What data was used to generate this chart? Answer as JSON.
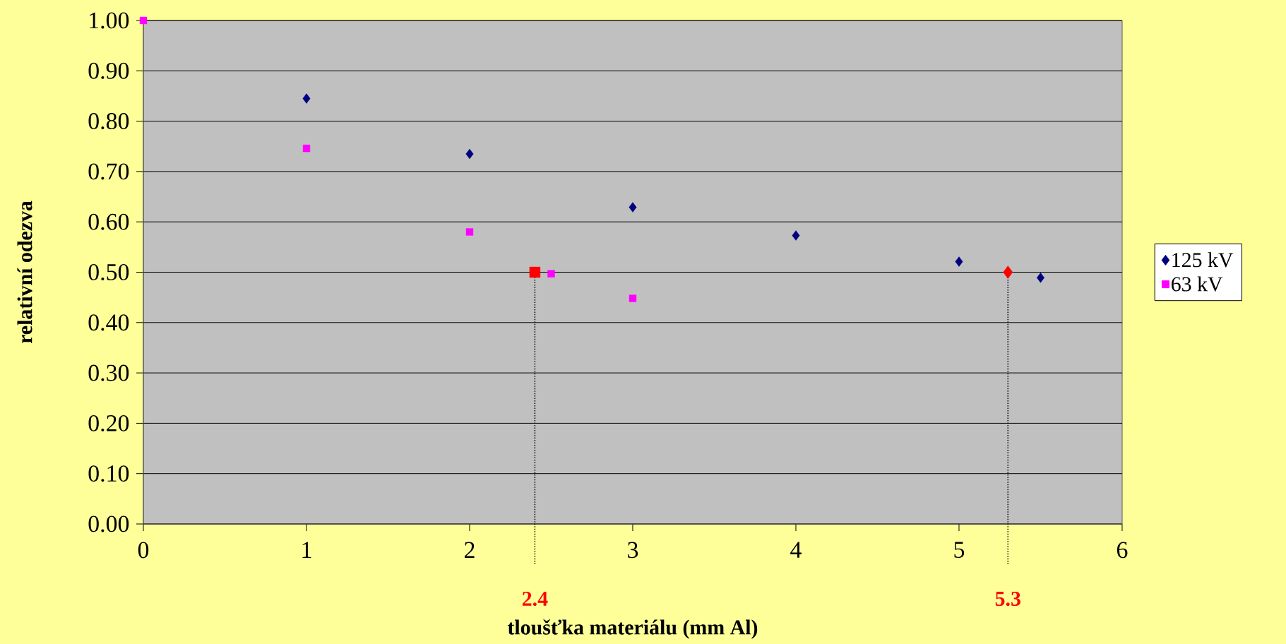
{
  "chart_data": {
    "type": "scatter",
    "xlabel": "tloušťka materiálu (mm Al)",
    "ylabel": "relativní odezva",
    "xlim": [
      0,
      6
    ],
    "xticks": [
      0,
      1,
      2,
      3,
      4,
      5,
      6
    ],
    "ylim": [
      0,
      1
    ],
    "yticks": [
      {
        "value": 0,
        "label": "0.00"
      },
      {
        "value": 0.1,
        "label": "0.10"
      },
      {
        "value": 0.2,
        "label": "0.20"
      },
      {
        "value": 0.3,
        "label": "0.30"
      },
      {
        "value": 0.4,
        "label": "0.40"
      },
      {
        "value": 0.5,
        "label": "0.50"
      },
      {
        "value": 0.6,
        "label": "0.60"
      },
      {
        "value": 0.7,
        "label": "0.70"
      },
      {
        "value": 0.8,
        "label": "0.80"
      },
      {
        "value": 0.9,
        "label": "0.90"
      },
      {
        "value": 1,
        "label": "1.00"
      }
    ],
    "grid": "y",
    "legend": "right",
    "series": [
      {
        "name": "125 kV",
        "color": "#000080",
        "marker": "diamond",
        "x": [
          1,
          2,
          3,
          4,
          5,
          5.5
        ],
        "values": [
          0.845,
          0.735,
          0.629,
          0.573,
          0.521,
          0.489
        ]
      },
      {
        "name": "63 kV",
        "color": "#ff00ff",
        "marker": "square",
        "x": [
          0,
          1,
          2,
          2.5,
          3
        ],
        "values": [
          1.0,
          0.746,
          0.58,
          0.497,
          0.448
        ]
      },
      {
        "color": "#ff0000",
        "marker": "square",
        "x": [
          2.4
        ],
        "values": [
          0.5
        ]
      },
      {
        "color": "#ff0000",
        "marker": "diamond",
        "x": [
          5.3
        ],
        "values": [
          0.5
        ]
      }
    ],
    "annotations": [
      {
        "text": "2.4",
        "x": 2.4,
        "y": 0.5
      },
      {
        "text": "5.3",
        "x": 5.3,
        "y": 0.5
      }
    ]
  }
}
